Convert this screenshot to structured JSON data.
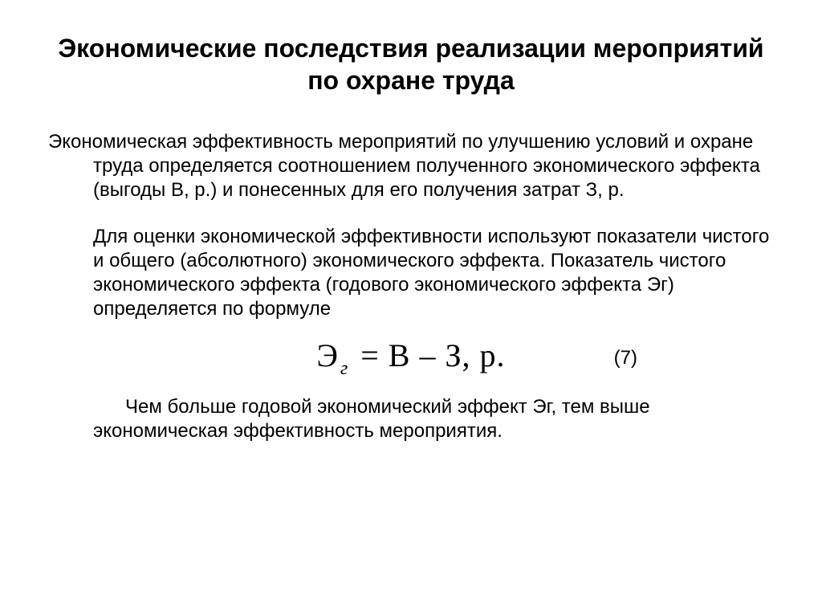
{
  "slide": {
    "title": "Экономические последствия реализации мероприятий по охране труда",
    "paragraph1": "Экономическая эффективность мероприятий по улучшению условий и охране труда определяется соотношением полученного экономического эффекта (выгоды В, р.) и понесенных для его получения затрат З, р.",
    "paragraph2": "Для оценки экономической эффективности используют показатели чистого и общего (абсолютного) экономического эффекта. Показатель чистого экономического эффекта (годового экономического эффекта Эг) определяется по формуле",
    "formula": {
      "lhs_symbol": "Э",
      "lhs_sub": "г",
      "rhs": "= В – З, р.",
      "number": "(7)"
    },
    "paragraph3": "Чем больше годовой экономический эффект Эг, тем выше экономическая эффективность мероприятия.",
    "colors": {
      "background": "#ffffff",
      "text": "#000000"
    },
    "fonts": {
      "title_size_pt": 32,
      "body_size_pt": 24,
      "formula_family": "Times New Roman",
      "formula_size_pt": 40
    }
  }
}
